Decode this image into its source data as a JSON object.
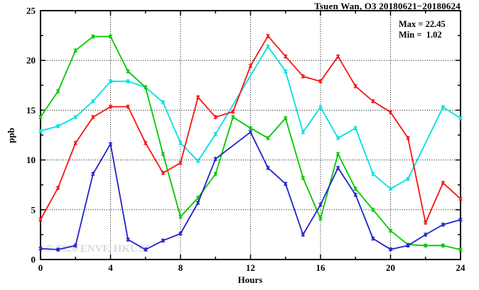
{
  "chart": {
    "title": "Tsuen Wan, O3 20180621−20180624",
    "xlabel": "Hours",
    "ylabel": "ppb",
    "annotations": {
      "max": "Max = 22.45",
      "min": "Min =  1.02"
    },
    "watermark": "© 2020 ENVF, HKUST"
  },
  "chart_data": {
    "type": "line",
    "title": "Tsuen Wan, O3 20180621−20180624",
    "xlabel": "Hours",
    "ylabel": "ppb",
    "xlim": [
      0,
      24
    ],
    "ylim": [
      0,
      25
    ],
    "x_major_ticks": [
      0,
      4,
      8,
      12,
      16,
      20,
      24
    ],
    "x_minor_step": 2,
    "y_major_ticks": [
      0,
      5,
      10,
      15,
      20,
      25
    ],
    "y_minor_step": 2.5,
    "x_gridlines": [
      4,
      8,
      12,
      16,
      20,
      24
    ],
    "y_gridlines": [
      5,
      10,
      15,
      20
    ],
    "grid": "dotted",
    "legend": "none",
    "annotations": {
      "max": 22.45,
      "min": 1.02
    },
    "x": [
      0,
      1,
      2,
      3,
      4,
      5,
      6,
      7,
      8,
      9,
      10,
      11,
      12,
      13,
      14,
      15,
      16,
      17,
      18,
      19,
      20,
      21,
      22,
      23,
      24
    ],
    "series": [
      {
        "name": "cyan-line",
        "color": "#00e0e0",
        "values": [
          12.9,
          13.4,
          14.3,
          15.9,
          17.9,
          17.9,
          17.3,
          15.8,
          11.7,
          9.9,
          12.6,
          null,
          null,
          21.4,
          18.9,
          12.8,
          15.3,
          12.2,
          13.2,
          8.6,
          7.1,
          8.1,
          null,
          15.3,
          14.2
        ]
      },
      {
        "name": "green-line",
        "color": "#00c800",
        "values": [
          14.3,
          16.9,
          21.0,
          22.4,
          22.4,
          18.9,
          17.3,
          10.6,
          4.3,
          6.2,
          8.6,
          14.3,
          13.2,
          12.2,
          14.2,
          8.2,
          4.1,
          10.6,
          7.1,
          5.0,
          2.9,
          1.5,
          1.4,
          1.4,
          1.0
        ]
      },
      {
        "name": "red-line",
        "color": "#f81414",
        "values": [
          4.0,
          7.2,
          11.7,
          14.3,
          15.35,
          15.35,
          11.7,
          8.7,
          9.7,
          16.3,
          14.3,
          14.85,
          19.45,
          22.45,
          20.4,
          18.4,
          17.9,
          20.4,
          17.4,
          15.9,
          14.8,
          12.2,
          3.7,
          7.7,
          6.1
        ]
      },
      {
        "name": "blue-line",
        "color": "#2222cc",
        "values": [
          1.1,
          1.0,
          1.4,
          8.6,
          11.6,
          2.0,
          1.0,
          1.9,
          2.6,
          5.7,
          10.1,
          null,
          12.8,
          9.2,
          7.6,
          2.5,
          5.5,
          9.2,
          6.5,
          2.1,
          1.02,
          1.4,
          2.5,
          3.5,
          4.0
        ]
      }
    ]
  }
}
